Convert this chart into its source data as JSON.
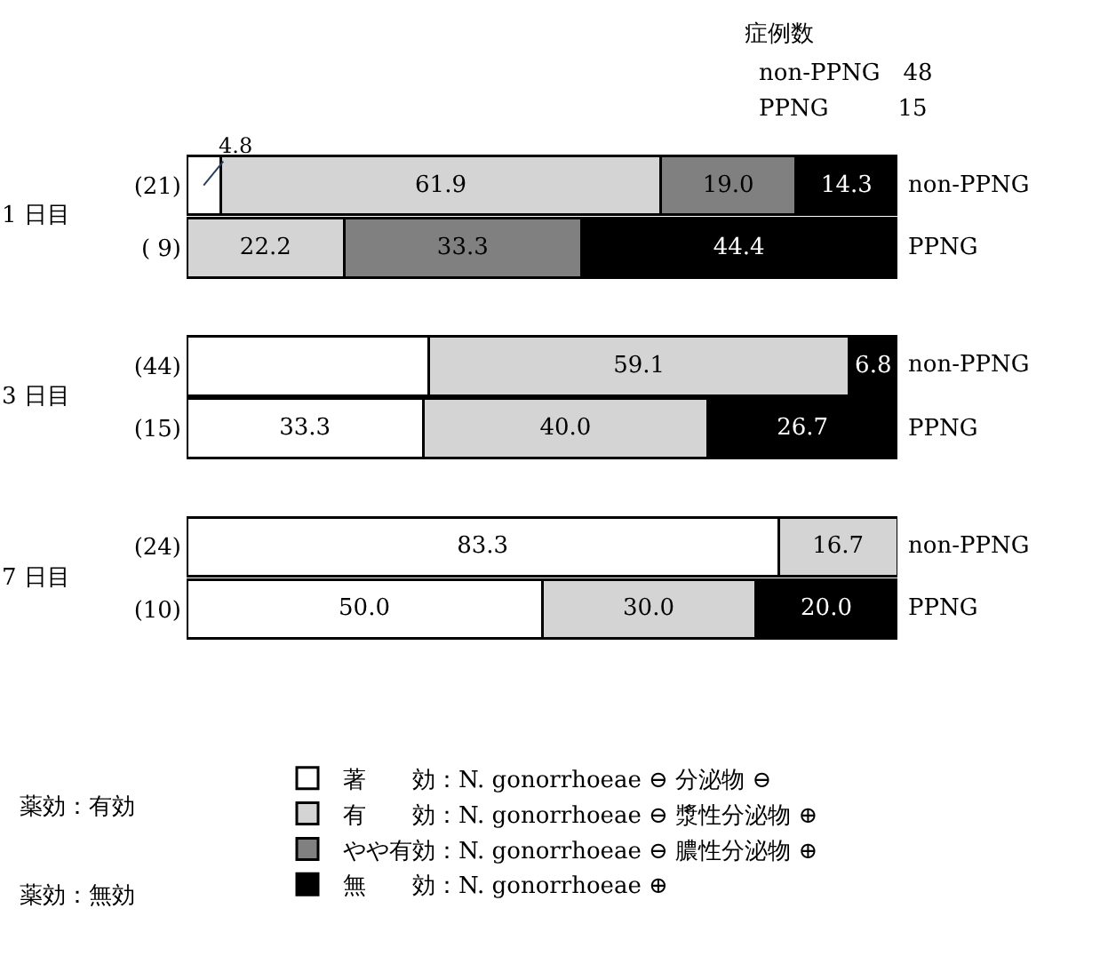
{
  "chart_data": {
    "type": "bar",
    "orientation": "horizontal",
    "stacked": true,
    "categories": [
      "(21)",
      "( 9)",
      "(44)",
      "(15)",
      "(24)",
      "(10)"
    ],
    "series": [
      {
        "name": "著　　効：N. gonorrhoeae ⊖ 分泌物 ⊖",
        "color": "#ffffff",
        "values": [
          4.8,
          0,
          34.1,
          33.3,
          83.3,
          50.0
        ],
        "value_labels": [
          "4.8",
          null,
          null,
          "33.3",
          "83.3",
          "50.0"
        ]
      },
      {
        "name": "有　　効：N. gonorrhoeae ⊖ 漿性分泌物 ⊕",
        "color": "#d4d4d4",
        "values": [
          61.9,
          22.2,
          59.1,
          40.0,
          16.7,
          30.0
        ],
        "value_labels": [
          "61.9",
          "22.2",
          "59.1",
          "40.0",
          "16.7",
          "30.0"
        ]
      },
      {
        "name": "やや有効：N. gonorrhoeae ⊖ 膿性分泌物 ⊕",
        "color": "#808080",
        "values": [
          19.0,
          33.3,
          0,
          0,
          0,
          0
        ],
        "value_labels": [
          "19.0",
          "33.3",
          null,
          null,
          null,
          null
        ]
      },
      {
        "name": "無　　効：N. gonorrhoeae ⊕",
        "color": "#000000",
        "values": [
          14.3,
          44.4,
          6.8,
          26.7,
          0,
          20.0
        ],
        "value_labels": [
          "14.3",
          "44.4",
          "6.8",
          "26.7",
          null,
          "20.0"
        ]
      }
    ],
    "xlim": [
      0,
      100
    ],
    "tick_labels": "y",
    "legend": "bottom",
    "annotations": [
      "症例数",
      "non-PPNG　48",
      "PPNG　　　15",
      "1 日目",
      "3 日目",
      "7 日目",
      "non-PPNG",
      "PPNG",
      "non-PPNG",
      "PPNG",
      "non-PPNG",
      "PPNG",
      "薬効：有効",
      "薬効：無効"
    ]
  }
}
